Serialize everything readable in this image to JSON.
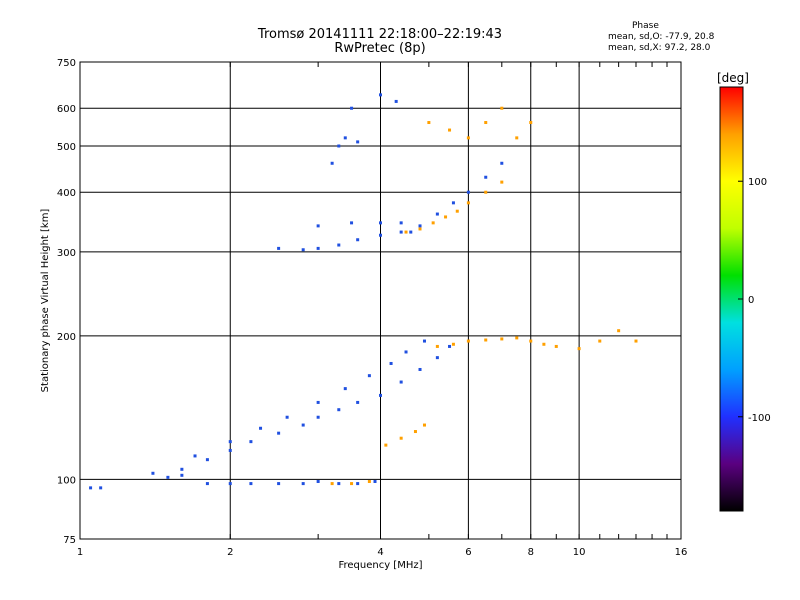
{
  "header": {
    "title": "Tromsø 20141111 22:18:00–22:19:43",
    "subtitle": "RwPretec (8p)"
  },
  "phase_info": {
    "title": "Phase",
    "line1": "mean, sd,O: -77.9, 20.8",
    "line2": "mean, sd,X:  97.2, 28.0"
  },
  "chart_data": {
    "type": "scatter",
    "title": "Tromsø 20141111 22:18:00–22:19:43",
    "subtitle": "RwPretec (8p)",
    "xlabel": "Frequency [MHz]",
    "ylabel": "Stationary phase Virtual Height [km]",
    "x_scale": "log",
    "y_scale": "log",
    "xlim": [
      1,
      16
    ],
    "ylim": [
      75,
      750
    ],
    "x_ticks": [
      1,
      2,
      4,
      6,
      8,
      10,
      16
    ],
    "x_tick_labels": [
      "1",
      "2",
      "4",
      "6",
      "8",
      "10",
      "16"
    ],
    "y_ticks": [
      75,
      100,
      200,
      300,
      400,
      500,
      600,
      750
    ],
    "y_tick_labels": [
      "75",
      "100",
      "200",
      "300",
      "400",
      "500",
      "600",
      "750"
    ],
    "grid": true,
    "colorbar": {
      "label": "[deg]",
      "range": [
        -180,
        180
      ],
      "ticks": [
        100,
        0,
        -100
      ],
      "tick_labels": [
        "100",
        "0",
        "-100"
      ],
      "colors": [
        "#000000",
        "#5a0080",
        "#2030ff",
        "#00a0ff",
        "#00e0e0",
        "#00e000",
        "#c0ff00",
        "#ffff00",
        "#ffa000",
        "#ff0000"
      ]
    },
    "series": [
      {
        "name": "O",
        "color": "#2050e0",
        "points": [
          [
            1.05,
            96
          ],
          [
            1.1,
            96
          ],
          [
            1.5,
            101
          ],
          [
            1.6,
            102
          ],
          [
            1.8,
            98
          ],
          [
            2.0,
            98
          ],
          [
            2.2,
            98
          ],
          [
            2.5,
            98
          ],
          [
            2.8,
            98
          ],
          [
            3.0,
            99
          ],
          [
            3.3,
            98
          ],
          [
            3.6,
            98
          ],
          [
            3.9,
            99
          ],
          [
            1.4,
            103
          ],
          [
            1.6,
            105
          ],
          [
            1.8,
            110
          ],
          [
            2.0,
            115
          ],
          [
            2.2,
            120
          ],
          [
            2.5,
            125
          ],
          [
            2.8,
            130
          ],
          [
            3.0,
            135
          ],
          [
            3.3,
            140
          ],
          [
            3.6,
            145
          ],
          [
            4.0,
            150
          ],
          [
            4.4,
            160
          ],
          [
            4.8,
            170
          ],
          [
            5.2,
            180
          ],
          [
            5.5,
            190
          ],
          [
            1.7,
            112
          ],
          [
            2.0,
            120
          ],
          [
            2.3,
            128
          ],
          [
            2.6,
            135
          ],
          [
            3.0,
            145
          ],
          [
            3.4,
            155
          ],
          [
            3.8,
            165
          ],
          [
            4.2,
            175
          ],
          [
            4.5,
            185
          ],
          [
            4.9,
            195
          ],
          [
            2.5,
            305
          ],
          [
            2.8,
            303
          ],
          [
            3.0,
            305
          ],
          [
            3.3,
            310
          ],
          [
            3.6,
            318
          ],
          [
            4.0,
            325
          ],
          [
            4.4,
            330
          ],
          [
            4.8,
            340
          ],
          [
            5.2,
            360
          ],
          [
            5.6,
            380
          ],
          [
            6.0,
            400
          ],
          [
            6.5,
            430
          ],
          [
            7.0,
            460
          ],
          [
            3.0,
            340
          ],
          [
            3.5,
            345
          ],
          [
            4.0,
            345
          ],
          [
            4.4,
            345
          ],
          [
            4.6,
            330
          ],
          [
            3.3,
            500
          ],
          [
            3.6,
            510
          ],
          [
            3.5,
            600
          ],
          [
            4.0,
            640
          ],
          [
            4.3,
            620
          ],
          [
            3.4,
            520
          ],
          [
            3.2,
            460
          ]
        ]
      },
      {
        "name": "X",
        "color": "#ffa000",
        "points": [
          [
            3.2,
            98
          ],
          [
            3.5,
            98
          ],
          [
            3.8,
            99
          ],
          [
            4.1,
            118
          ],
          [
            4.4,
            122
          ],
          [
            4.7,
            126
          ],
          [
            4.9,
            130
          ],
          [
            5.2,
            190
          ],
          [
            5.6,
            192
          ],
          [
            6.0,
            195
          ],
          [
            6.5,
            196
          ],
          [
            7.0,
            197
          ],
          [
            7.5,
            198
          ],
          [
            8.0,
            195
          ],
          [
            8.5,
            192
          ],
          [
            9.0,
            190
          ],
          [
            10.0,
            188
          ],
          [
            11.0,
            195
          ],
          [
            12.0,
            205
          ],
          [
            13.0,
            195
          ],
          [
            4.5,
            330
          ],
          [
            4.8,
            335
          ],
          [
            5.1,
            345
          ],
          [
            5.4,
            355
          ],
          [
            5.7,
            365
          ],
          [
            6.0,
            380
          ],
          [
            6.5,
            400
          ],
          [
            7.0,
            420
          ],
          [
            5.0,
            560
          ],
          [
            5.5,
            540
          ],
          [
            6.0,
            520
          ],
          [
            6.5,
            560
          ],
          [
            7.0,
            600
          ],
          [
            7.5,
            520
          ],
          [
            8.0,
            560
          ]
        ]
      }
    ]
  }
}
